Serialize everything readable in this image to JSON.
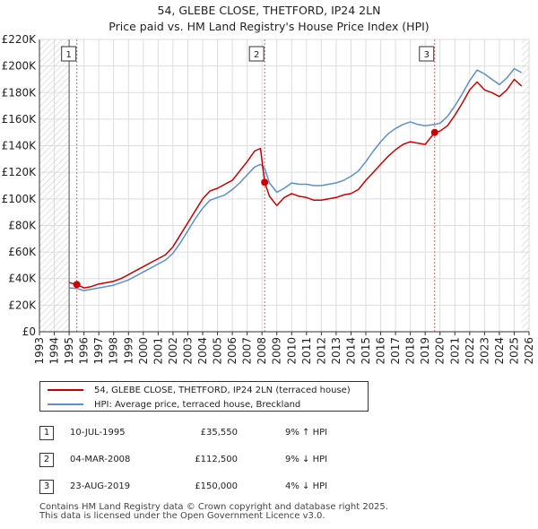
{
  "header": {
    "line1": "54, GLEBE CLOSE, THETFORD, IP24 2LN",
    "line2": "Price paid vs. HM Land Registry's House Price Index (HPI)"
  },
  "legend": {
    "property": "54, GLEBE CLOSE, THETFORD, IP24 2LN (terraced house)",
    "hpi": "HPI: Average price, terraced house, Breckland"
  },
  "sales": [
    {
      "num": "1",
      "date": "10-JUL-1995",
      "price": "£35,550",
      "hpi": "9% ↑ HPI"
    },
    {
      "num": "2",
      "date": "04-MAR-2008",
      "price": "£112,500",
      "hpi": "9% ↓ HPI"
    },
    {
      "num": "3",
      "date": "23-AUG-2019",
      "price": "£150,000",
      "hpi": "4% ↓ HPI"
    }
  ],
  "footer": {
    "line1": "Contains HM Land Registry data © Crown copyright and database right 2025.",
    "line2": "This data is licensed under the Open Government Licence v3.0."
  },
  "chart_data": {
    "type": "line",
    "title": "54, GLEBE CLOSE, THETFORD, IP24 2LN — Price paid vs. HM Land Registry's House Price Index (HPI)",
    "xlim": [
      1993,
      2026
    ],
    "ylim": [
      0,
      220000
    ],
    "x_ticks": [
      "1993",
      "1994",
      "1995",
      "1996",
      "1997",
      "1998",
      "1999",
      "2000",
      "2001",
      "2002",
      "2003",
      "2004",
      "2005",
      "2006",
      "2007",
      "2008",
      "2009",
      "2010",
      "2011",
      "2012",
      "2013",
      "2014",
      "2015",
      "2016",
      "2017",
      "2018",
      "2019",
      "2020",
      "2021",
      "2022",
      "2023",
      "2024",
      "2025",
      "2026"
    ],
    "y_ticks": [
      {
        "value": 0,
        "label": "£0"
      },
      {
        "value": 20000,
        "label": "£20K"
      },
      {
        "value": 40000,
        "label": "£40K"
      },
      {
        "value": 60000,
        "label": "£60K"
      },
      {
        "value": 80000,
        "label": "£80K"
      },
      {
        "value": 100000,
        "label": "£100K"
      },
      {
        "value": 120000,
        "label": "£120K"
      },
      {
        "value": 140000,
        "label": "£140K"
      },
      {
        "value": 160000,
        "label": "£160K"
      },
      {
        "value": 180000,
        "label": "£180K"
      },
      {
        "value": 200000,
        "label": "£200K"
      },
      {
        "value": 220000,
        "label": "£220K"
      }
    ],
    "hatched_regions": [
      [
        1993,
        1995.0
      ],
      [
        2025.5,
        2026
      ]
    ],
    "colors": {
      "property": "#cc0000",
      "hpi": "#5b8fd0",
      "marker_line": "#e06060"
    },
    "series": [
      {
        "name": "54, GLEBE CLOSE, THETFORD, IP24 2LN (terraced house)",
        "x": [
          1995.0,
          1995.52,
          1996.0,
          1996.5,
          1997.0,
          1997.5,
          1998.0,
          1998.5,
          1999.0,
          1999.5,
          2000.0,
          2000.5,
          2001.0,
          2001.5,
          2002.0,
          2002.5,
          2003.0,
          2003.5,
          2004.0,
          2004.5,
          2005.0,
          2005.5,
          2006.0,
          2006.5,
          2007.0,
          2007.5,
          2007.9,
          2008.18,
          2008.5,
          2009.0,
          2009.5,
          2010.0,
          2010.5,
          2011.0,
          2011.5,
          2012.0,
          2012.5,
          2013.0,
          2013.5,
          2014.0,
          2014.5,
          2015.0,
          2015.5,
          2016.0,
          2016.5,
          2017.0,
          2017.5,
          2018.0,
          2018.5,
          2019.0,
          2019.64,
          2020.0,
          2020.5,
          2021.0,
          2021.5,
          2022.0,
          2022.5,
          2023.0,
          2023.5,
          2024.0,
          2024.5,
          2025.0,
          2025.5
        ],
        "values": [
          37000,
          35550,
          33000,
          34000,
          36000,
          37000,
          38000,
          40000,
          43000,
          46000,
          49000,
          52000,
          55000,
          58000,
          64000,
          73000,
          82000,
          91000,
          100000,
          106000,
          108000,
          111000,
          114000,
          121000,
          128000,
          136000,
          138000,
          112500,
          102000,
          95000,
          101000,
          104000,
          102000,
          101000,
          99000,
          99000,
          100000,
          101000,
          103000,
          104000,
          107000,
          114000,
          120000,
          126000,
          132000,
          137000,
          141000,
          143000,
          142000,
          141000,
          150000,
          151000,
          155000,
          163000,
          172000,
          182000,
          188000,
          182000,
          180000,
          177000,
          182000,
          190000,
          185000
        ]
      },
      {
        "name": "HPI: Average price, terraced house, Breckland",
        "x": [
          1995.0,
          1995.52,
          1996.0,
          1996.5,
          1997.0,
          1997.5,
          1998.0,
          1998.5,
          1999.0,
          1999.5,
          2000.0,
          2000.5,
          2001.0,
          2001.5,
          2002.0,
          2002.5,
          2003.0,
          2003.5,
          2004.0,
          2004.5,
          2005.0,
          2005.5,
          2006.0,
          2006.5,
          2007.0,
          2007.5,
          2007.9,
          2008.18,
          2008.5,
          2009.0,
          2009.5,
          2010.0,
          2010.5,
          2011.0,
          2011.5,
          2012.0,
          2012.5,
          2013.0,
          2013.5,
          2014.0,
          2014.5,
          2015.0,
          2015.5,
          2016.0,
          2016.5,
          2017.0,
          2017.5,
          2018.0,
          2018.5,
          2019.0,
          2019.64,
          2020.0,
          2020.5,
          2021.0,
          2021.5,
          2022.0,
          2022.5,
          2023.0,
          2023.5,
          2024.0,
          2024.5,
          2025.0,
          2025.5
        ],
        "values": [
          33000,
          32600,
          31000,
          32000,
          33000,
          34000,
          35000,
          37000,
          39000,
          42000,
          45000,
          48000,
          51000,
          54000,
          59000,
          67000,
          76000,
          85000,
          93000,
          99000,
          101000,
          103000,
          107000,
          112000,
          118000,
          124000,
          126000,
          123000,
          112000,
          105000,
          108000,
          112000,
          111000,
          111000,
          110000,
          110000,
          111000,
          112000,
          114000,
          117000,
          121000,
          128000,
          136000,
          143000,
          149000,
          153000,
          156000,
          158000,
          156000,
          155000,
          156000,
          157000,
          162000,
          170000,
          179000,
          189000,
          197000,
          194000,
          190000,
          186000,
          191000,
          198000,
          195000
        ]
      }
    ],
    "sales_markers": [
      {
        "label": "1",
        "x": 1995.52,
        "value": 35550
      },
      {
        "label": "2",
        "x": 2008.18,
        "value": 112500
      },
      {
        "label": "3",
        "x": 2019.64,
        "value": 150000
      }
    ]
  }
}
